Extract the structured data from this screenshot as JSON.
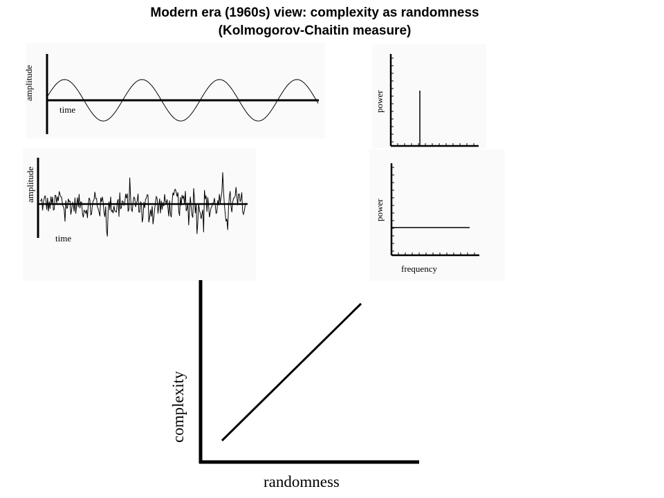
{
  "slide": {
    "title_line1": "Modern era (1960s) view: complexity as randomness",
    "title_line2": "(Kolmogorov-Chaitin measure)"
  },
  "panels": {
    "sine_wave": {
      "ylabel": "amplitude",
      "xlabel": "time"
    },
    "sine_spectrum": {
      "ylabel": "power"
    },
    "noise_wave": {
      "ylabel": "amplitude",
      "xlabel": "time"
    },
    "noise_spectrum": {
      "ylabel": "power",
      "xlabel": "frequency"
    },
    "complexity_plot": {
      "ylabel": "complexity",
      "xlabel": "randomness"
    }
  }
}
